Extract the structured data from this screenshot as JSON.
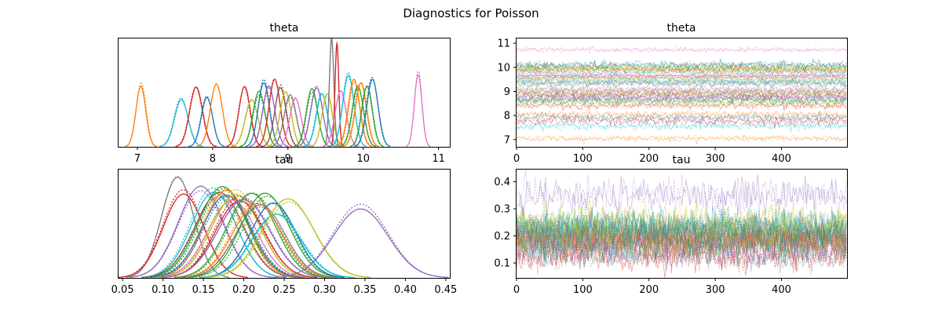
{
  "figure": {
    "title": "Diagnostics for Poisson"
  },
  "palette": [
    "#1f77b4",
    "#ff7f0e",
    "#2ca02c",
    "#d62728",
    "#9467bd",
    "#8c564b",
    "#e377c2",
    "#7f7f7f",
    "#bcbd22",
    "#17becf"
  ],
  "chart_data": [
    {
      "type": "line",
      "name": "theta-density",
      "title": "theta",
      "xlabel": "",
      "ylabel": "",
      "xlim": [
        6.75,
        11.15
      ],
      "ylim": [
        0,
        1.0
      ],
      "xticks": [
        7,
        8,
        9,
        10,
        11
      ],
      "yticks": [],
      "series": [
        {
          "color": "#ff7f0e",
          "mean": 7.05,
          "sd": 0.065,
          "height": 0.58
        },
        {
          "color": "#17becf",
          "mean": 7.58,
          "sd": 0.09,
          "height": 0.45
        },
        {
          "color": "#d62728",
          "mean": 7.78,
          "sd": 0.085,
          "height": 0.54
        },
        {
          "color": "#1f77b4",
          "mean": 7.92,
          "sd": 0.075,
          "height": 0.47
        },
        {
          "color": "#ff7f0e",
          "mean": 8.05,
          "sd": 0.08,
          "height": 0.56
        },
        {
          "color": "#d62728",
          "mean": 8.42,
          "sd": 0.075,
          "height": 0.55
        },
        {
          "color": "#bcbd22",
          "mean": 8.52,
          "sd": 0.085,
          "height": 0.44
        },
        {
          "color": "#2ca02c",
          "mean": 8.62,
          "sd": 0.08,
          "height": 0.5
        },
        {
          "color": "#1f77b4",
          "mean": 8.68,
          "sd": 0.075,
          "height": 0.6
        },
        {
          "color": "#9467bd",
          "mean": 8.75,
          "sd": 0.08,
          "height": 0.55
        },
        {
          "color": "#d62728",
          "mean": 8.82,
          "sd": 0.075,
          "height": 0.62
        },
        {
          "color": "#8c564b",
          "mean": 8.9,
          "sd": 0.075,
          "height": 0.56
        },
        {
          "color": "#bcbd22",
          "mean": 8.97,
          "sd": 0.075,
          "height": 0.5
        },
        {
          "color": "#7f7f7f",
          "mean": 9.03,
          "sd": 0.08,
          "height": 0.47
        },
        {
          "color": "#e377c2",
          "mean": 9.1,
          "sd": 0.075,
          "height": 0.44
        },
        {
          "color": "#2ca02c",
          "mean": 9.32,
          "sd": 0.075,
          "height": 0.52
        },
        {
          "color": "#9467bd",
          "mean": 9.38,
          "sd": 0.08,
          "height": 0.55
        },
        {
          "color": "#17becf",
          "mean": 9.45,
          "sd": 0.075,
          "height": 0.5
        },
        {
          "color": "#bcbd22",
          "mean": 9.52,
          "sd": 0.07,
          "height": 0.48
        },
        {
          "color": "#7f7f7f",
          "mean": 9.58,
          "sd": 0.03,
          "height": 0.98
        },
        {
          "color": "#d62728",
          "mean": 9.65,
          "sd": 0.025,
          "height": 0.93
        },
        {
          "color": "#e377c2",
          "mean": 9.7,
          "sd": 0.075,
          "height": 0.5
        },
        {
          "color": "#17becf",
          "mean": 9.8,
          "sd": 0.075,
          "height": 0.68
        },
        {
          "color": "#ff7f0e",
          "mean": 9.88,
          "sd": 0.075,
          "height": 0.62
        },
        {
          "color": "#2ca02c",
          "mean": 9.93,
          "sd": 0.075,
          "height": 0.55
        },
        {
          "color": "#ff7f0e",
          "mean": 9.97,
          "sd": 0.075,
          "height": 0.6
        },
        {
          "color": "#2ca02c",
          "mean": 10.05,
          "sd": 0.07,
          "height": 0.55
        },
        {
          "color": "#1f77b4",
          "mean": 10.12,
          "sd": 0.075,
          "height": 0.62
        },
        {
          "color": "#e377c2",
          "mean": 10.73,
          "sd": 0.05,
          "height": 0.68
        }
      ]
    },
    {
      "type": "line",
      "name": "theta-trace",
      "title": "theta",
      "xlabel": "",
      "ylabel": "",
      "xlim": [
        0,
        499
      ],
      "ylim": [
        6.7,
        11.2
      ],
      "xticks": [
        0,
        100,
        200,
        300,
        400
      ],
      "yticks": [
        7,
        8,
        9,
        10,
        11
      ],
      "series": [
        {
          "color": "#ff7f0e",
          "mean": 7.05,
          "sd": 0.065
        },
        {
          "color": "#17becf",
          "mean": 7.58,
          "sd": 0.09
        },
        {
          "color": "#d62728",
          "mean": 7.78,
          "sd": 0.085
        },
        {
          "color": "#1f77b4",
          "mean": 7.92,
          "sd": 0.075
        },
        {
          "color": "#ff7f0e",
          "mean": 8.05,
          "sd": 0.08
        },
        {
          "color": "#d62728",
          "mean": 8.42,
          "sd": 0.075
        },
        {
          "color": "#bcbd22",
          "mean": 8.52,
          "sd": 0.085
        },
        {
          "color": "#2ca02c",
          "mean": 8.62,
          "sd": 0.08
        },
        {
          "color": "#1f77b4",
          "mean": 8.68,
          "sd": 0.075
        },
        {
          "color": "#9467bd",
          "mean": 8.75,
          "sd": 0.08
        },
        {
          "color": "#d62728",
          "mean": 8.82,
          "sd": 0.075
        },
        {
          "color": "#8c564b",
          "mean": 8.9,
          "sd": 0.075
        },
        {
          "color": "#bcbd22",
          "mean": 8.97,
          "sd": 0.075
        },
        {
          "color": "#7f7f7f",
          "mean": 9.03,
          "sd": 0.08
        },
        {
          "color": "#e377c2",
          "mean": 9.1,
          "sd": 0.075
        },
        {
          "color": "#2ca02c",
          "mean": 9.32,
          "sd": 0.075
        },
        {
          "color": "#9467bd",
          "mean": 9.38,
          "sd": 0.08
        },
        {
          "color": "#17becf",
          "mean": 9.45,
          "sd": 0.075
        },
        {
          "color": "#bcbd22",
          "mean": 9.52,
          "sd": 0.07
        },
        {
          "color": "#7f7f7f",
          "mean": 9.58,
          "sd": 0.03
        },
        {
          "color": "#d62728",
          "mean": 9.65,
          "sd": 0.025
        },
        {
          "color": "#e377c2",
          "mean": 9.7,
          "sd": 0.075
        },
        {
          "color": "#17becf",
          "mean": 9.8,
          "sd": 0.075
        },
        {
          "color": "#ff7f0e",
          "mean": 9.88,
          "sd": 0.075
        },
        {
          "color": "#2ca02c",
          "mean": 9.93,
          "sd": 0.075
        },
        {
          "color": "#ff7f0e",
          "mean": 9.97,
          "sd": 0.075
        },
        {
          "color": "#2ca02c",
          "mean": 10.05,
          "sd": 0.07
        },
        {
          "color": "#1f77b4",
          "mean": 10.12,
          "sd": 0.075
        },
        {
          "color": "#e377c2",
          "mean": 10.73,
          "sd": 0.05
        }
      ]
    },
    {
      "type": "line",
      "name": "tau-density",
      "title": "tau",
      "xlabel": "",
      "ylabel": "",
      "xlim": [
        0.045,
        0.455
      ],
      "ylim": [
        0,
        1.0
      ],
      "xticks": [
        0.05,
        0.1,
        0.15,
        0.2,
        0.25,
        0.3,
        0.35,
        0.4,
        0.45
      ],
      "xticklabels": [
        "0.05",
        "0.10",
        "0.15",
        "0.20",
        "0.25",
        "0.30",
        "0.35",
        "0.40",
        "0.45"
      ],
      "yticks": [],
      "series": [
        {
          "color": "#7f7f7f",
          "mean": 0.118,
          "sd": 0.02,
          "height": 0.96
        },
        {
          "color": "#d62728",
          "mean": 0.125,
          "sd": 0.025,
          "height": 0.8
        },
        {
          "color": "#9467bd",
          "mean": 0.148,
          "sd": 0.028,
          "height": 0.83
        },
        {
          "color": "#17becf",
          "mean": 0.163,
          "sd": 0.028,
          "height": 0.8
        },
        {
          "color": "#8c564b",
          "mean": 0.17,
          "sd": 0.03,
          "height": 0.78
        },
        {
          "color": "#2ca02c",
          "mean": 0.175,
          "sd": 0.03,
          "height": 0.82
        },
        {
          "color": "#ff7f0e",
          "mean": 0.178,
          "sd": 0.028,
          "height": 0.84
        },
        {
          "color": "#1f77b4",
          "mean": 0.18,
          "sd": 0.03,
          "height": 0.76
        },
        {
          "color": "#e377c2",
          "mean": 0.185,
          "sd": 0.03,
          "height": 0.7
        },
        {
          "color": "#bcbd22",
          "mean": 0.19,
          "sd": 0.03,
          "height": 0.8
        },
        {
          "color": "#d62728",
          "mean": 0.195,
          "sd": 0.03,
          "height": 0.74
        },
        {
          "color": "#9467bd",
          "mean": 0.2,
          "sd": 0.032,
          "height": 0.72
        },
        {
          "color": "#2ca02c",
          "mean": 0.21,
          "sd": 0.03,
          "height": 0.76
        },
        {
          "color": "#ff7f0e",
          "mean": 0.215,
          "sd": 0.03,
          "height": 0.7
        },
        {
          "color": "#7f7f7f",
          "mean": 0.22,
          "sd": 0.03,
          "height": 0.66
        },
        {
          "color": "#2ca02c",
          "mean": 0.228,
          "sd": 0.03,
          "height": 0.78
        },
        {
          "color": "#1f77b4",
          "mean": 0.235,
          "sd": 0.028,
          "height": 0.7
        },
        {
          "color": "#17becf",
          "mean": 0.242,
          "sd": 0.03,
          "height": 0.6
        },
        {
          "color": "#bcbd22",
          "mean": 0.255,
          "sd": 0.032,
          "height": 0.73
        },
        {
          "color": "#9467bd",
          "mean": 0.345,
          "sd": 0.034,
          "height": 0.66
        }
      ]
    },
    {
      "type": "line",
      "name": "tau-trace",
      "title": "tau",
      "xlabel": "",
      "ylabel": "",
      "xlim": [
        0,
        499
      ],
      "ylim": [
        0.045,
        0.445
      ],
      "xticks": [
        0,
        100,
        200,
        300,
        400
      ],
      "yticks": [
        0.1,
        0.2,
        0.3,
        0.4
      ],
      "yticklabels": [
        "0.1",
        "0.2",
        "0.3",
        "0.4"
      ],
      "series": [
        {
          "color": "#7f7f7f",
          "mean": 0.118,
          "sd": 0.02
        },
        {
          "color": "#d62728",
          "mean": 0.125,
          "sd": 0.025
        },
        {
          "color": "#9467bd",
          "mean": 0.148,
          "sd": 0.028
        },
        {
          "color": "#17becf",
          "mean": 0.163,
          "sd": 0.028
        },
        {
          "color": "#8c564b",
          "mean": 0.17,
          "sd": 0.03
        },
        {
          "color": "#2ca02c",
          "mean": 0.175,
          "sd": 0.03
        },
        {
          "color": "#ff7f0e",
          "mean": 0.178,
          "sd": 0.028
        },
        {
          "color": "#1f77b4",
          "mean": 0.18,
          "sd": 0.03
        },
        {
          "color": "#e377c2",
          "mean": 0.185,
          "sd": 0.03
        },
        {
          "color": "#bcbd22",
          "mean": 0.19,
          "sd": 0.03
        },
        {
          "color": "#d62728",
          "mean": 0.195,
          "sd": 0.03
        },
        {
          "color": "#9467bd",
          "mean": 0.2,
          "sd": 0.032
        },
        {
          "color": "#2ca02c",
          "mean": 0.21,
          "sd": 0.03
        },
        {
          "color": "#ff7f0e",
          "mean": 0.215,
          "sd": 0.03
        },
        {
          "color": "#7f7f7f",
          "mean": 0.22,
          "sd": 0.03
        },
        {
          "color": "#2ca02c",
          "mean": 0.228,
          "sd": 0.03
        },
        {
          "color": "#1f77b4",
          "mean": 0.235,
          "sd": 0.028
        },
        {
          "color": "#17becf",
          "mean": 0.242,
          "sd": 0.03
        },
        {
          "color": "#bcbd22",
          "mean": 0.255,
          "sd": 0.032
        },
        {
          "color": "#9467bd",
          "mean": 0.345,
          "sd": 0.034
        }
      ]
    }
  ]
}
